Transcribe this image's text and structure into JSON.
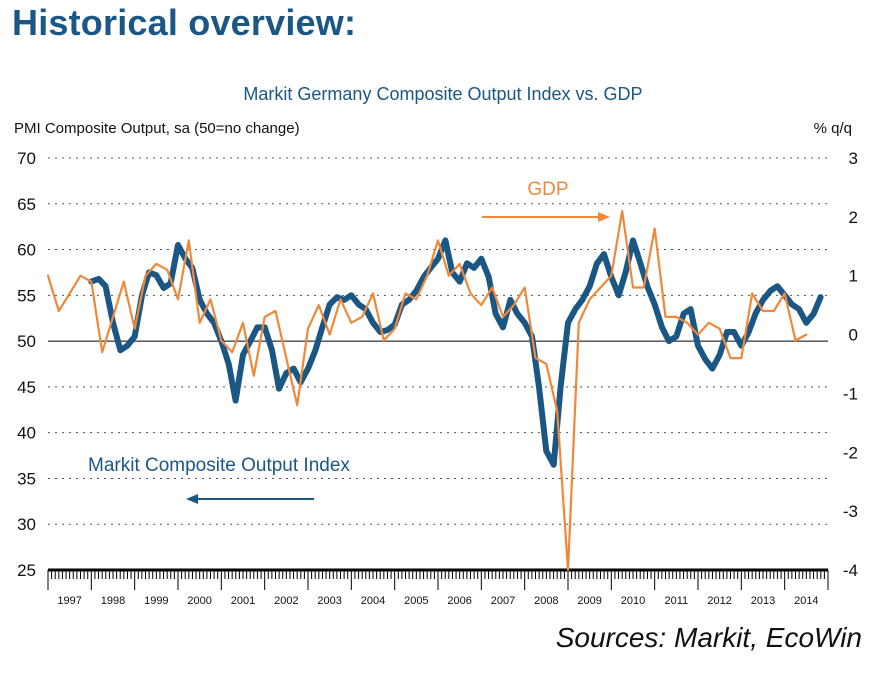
{
  "header": {
    "page_title": "Historical overview:",
    "source": "Sources: Markit, EcoWin"
  },
  "colors": {
    "pmi": "#1a5785",
    "gdp": "#f0883a",
    "title": "#1a5785"
  },
  "chart_data": {
    "type": "line",
    "title": "Markit Germany Composite Output Index vs. GDP",
    "ylabel": "PMI Composite Output, sa (50=no change)",
    "y2label": "% q/q",
    "ylim": [
      25,
      70
    ],
    "y2lim": [
      -4,
      3
    ],
    "yticks": [
      "70",
      "65",
      "60",
      "55",
      "50",
      "45",
      "40",
      "35",
      "30",
      "25"
    ],
    "y2ticks": [
      "3",
      "2",
      "1",
      "0",
      "-1",
      "-2",
      "-3",
      "-4"
    ],
    "xlim": [
      1997,
      2015
    ],
    "xlabels": [
      "1997",
      "1998",
      "1999",
      "2000",
      "2001",
      "2002",
      "2003",
      "2004",
      "2005",
      "2006",
      "2007",
      "2008",
      "2009",
      "2010",
      "2011",
      "2012",
      "2013",
      "2014"
    ],
    "grid": "dotted-horizontal",
    "annotations": [
      {
        "text": "GDP",
        "series": "gdp",
        "arrow": "right"
      },
      {
        "text": "Markit Composite Output Index",
        "series": "pmi",
        "arrow": "left"
      }
    ],
    "series": [
      {
        "key": "pmi",
        "name": "Markit Composite Output Index",
        "axis": "left",
        "x": [
          1998.0,
          1998.17,
          1998.33,
          1998.5,
          1998.67,
          1998.83,
          1999.0,
          1999.17,
          1999.33,
          1999.5,
          1999.67,
          1999.83,
          2000.0,
          2000.17,
          2000.33,
          2000.5,
          2000.67,
          2000.83,
          2001.0,
          2001.17,
          2001.33,
          2001.5,
          2001.67,
          2001.83,
          2002.0,
          2002.17,
          2002.33,
          2002.5,
          2002.67,
          2002.83,
          2003.0,
          2003.17,
          2003.33,
          2003.5,
          2003.67,
          2003.83,
          2004.0,
          2004.17,
          2004.33,
          2004.5,
          2004.67,
          2004.83,
          2005.0,
          2005.17,
          2005.33,
          2005.5,
          2005.67,
          2005.83,
          2006.0,
          2006.17,
          2006.33,
          2006.5,
          2006.67,
          2006.83,
          2007.0,
          2007.17,
          2007.33,
          2007.5,
          2007.67,
          2007.83,
          2008.0,
          2008.17,
          2008.33,
          2008.5,
          2008.67,
          2008.83,
          2009.0,
          2009.17,
          2009.33,
          2009.5,
          2009.67,
          2009.83,
          2010.0,
          2010.17,
          2010.33,
          2010.5,
          2010.67,
          2010.83,
          2011.0,
          2011.17,
          2011.33,
          2011.5,
          2011.67,
          2011.83,
          2012.0,
          2012.17,
          2012.33,
          2012.5,
          2012.67,
          2012.83,
          2013.0,
          2013.17,
          2013.33,
          2013.5,
          2013.67,
          2013.83,
          2014.0,
          2014.17,
          2014.33,
          2014.5,
          2014.67,
          2014.83
        ],
        "values": [
          56.5,
          56.8,
          56.0,
          52.0,
          49.0,
          49.5,
          50.5,
          55.0,
          57.5,
          57.2,
          55.8,
          56.3,
          60.5,
          59.0,
          58.0,
          54.5,
          53.0,
          52.0,
          50.0,
          47.5,
          43.5,
          48.5,
          50.0,
          51.5,
          51.5,
          49.0,
          44.8,
          46.5,
          47.0,
          45.5,
          47.0,
          49.0,
          51.5,
          54.0,
          54.8,
          54.5,
          55.0,
          54.0,
          53.5,
          52.0,
          51.0,
          51.2,
          51.8,
          54.0,
          54.5,
          55.5,
          57.0,
          58.0,
          59.0,
          61.0,
          57.5,
          56.5,
          58.5,
          58.0,
          59.0,
          57.0,
          53.0,
          51.5,
          54.5,
          53.0,
          52.0,
          50.5,
          45.0,
          38.0,
          36.5,
          45.0,
          52.0,
          53.5,
          54.5,
          56.0,
          58.5,
          59.5,
          57.0,
          55.0,
          57.5,
          61.0,
          58.5,
          56.0,
          54.0,
          51.5,
          50.0,
          50.5,
          53.0,
          53.5,
          49.5,
          48.0,
          47.0,
          48.5,
          51.0,
          51.0,
          49.5,
          51.0,
          53.0,
          54.5,
          55.5,
          56.0,
          55.0,
          54.0,
          53.5,
          52.0,
          53.0,
          54.8
        ]
      },
      {
        "key": "gdp",
        "name": "GDP",
        "axis": "right",
        "x": [
          1997.0,
          1997.25,
          1997.5,
          1997.75,
          1998.0,
          1998.25,
          1998.5,
          1998.75,
          1999.0,
          1999.25,
          1999.5,
          1999.75,
          2000.0,
          2000.25,
          2000.5,
          2000.75,
          2001.0,
          2001.25,
          2001.5,
          2001.75,
          2002.0,
          2002.25,
          2002.5,
          2002.75,
          2003.0,
          2003.25,
          2003.5,
          2003.75,
          2004.0,
          2004.25,
          2004.5,
          2004.75,
          2005.0,
          2005.25,
          2005.5,
          2005.75,
          2006.0,
          2006.25,
          2006.5,
          2006.75,
          2007.0,
          2007.25,
          2007.5,
          2007.75,
          2008.0,
          2008.25,
          2008.5,
          2008.75,
          2009.0,
          2009.25,
          2009.5,
          2009.75,
          2010.0,
          2010.25,
          2010.5,
          2010.75,
          2011.0,
          2011.25,
          2011.5,
          2011.75,
          2012.0,
          2012.25,
          2012.5,
          2012.75,
          2013.0,
          2013.25,
          2013.5,
          2013.75,
          2014.0,
          2014.25,
          2014.5
        ],
        "values": [
          1.0,
          0.4,
          0.7,
          1.0,
          0.9,
          -0.3,
          0.3,
          0.9,
          0.1,
          1.0,
          1.2,
          1.1,
          0.6,
          1.6,
          0.2,
          0.6,
          -0.1,
          -0.3,
          0.2,
          -0.7,
          0.3,
          0.4,
          -0.4,
          -1.2,
          0.1,
          0.5,
          0.0,
          0.6,
          0.2,
          0.3,
          0.7,
          -0.1,
          0.1,
          0.7,
          0.6,
          1.0,
          1.6,
          1.0,
          1.2,
          0.7,
          0.5,
          0.8,
          0.3,
          0.5,
          0.8,
          -0.4,
          -0.5,
          -1.3,
          -4.0,
          0.2,
          0.6,
          0.8,
          1.0,
          2.1,
          0.8,
          0.8,
          1.8,
          0.3,
          0.3,
          0.2,
          0.0,
          0.2,
          0.1,
          -0.4,
          -0.4,
          0.7,
          0.4,
          0.4,
          0.7,
          -0.1,
          0.0
        ]
      }
    ]
  }
}
